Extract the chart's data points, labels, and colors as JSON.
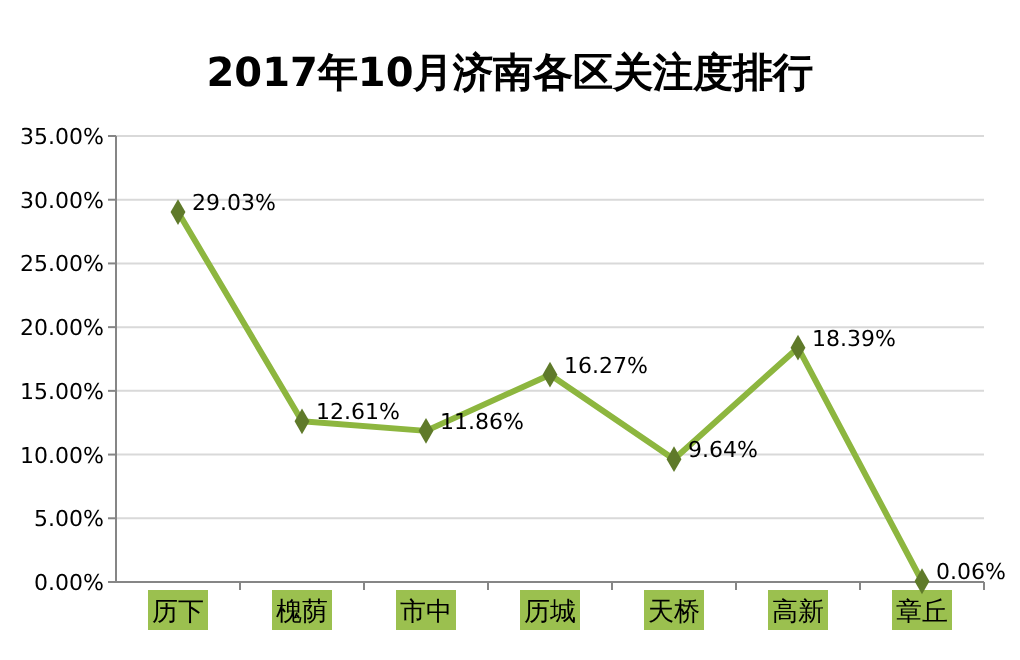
{
  "chart_data": {
    "type": "line",
    "title": "2017年10月济南各区关注度排行",
    "categories": [
      "历下",
      "槐荫",
      "市中",
      "历城",
      "天桥",
      "高新",
      "章丘"
    ],
    "series": [
      {
        "color": "#8db63f",
        "values": [
          29.03,
          12.61,
          11.86,
          16.27,
          9.64,
          18.39,
          0.06
        ],
        "value_labels": [
          "29.03%",
          "12.61%",
          "11.86%",
          "16.27%",
          "9.64%",
          "18.39%",
          "0.06%"
        ]
      }
    ],
    "ylim": [
      0,
      35
    ],
    "yticks": [
      {
        "value": 0,
        "label": "0.00%"
      },
      {
        "value": 5,
        "label": "5.00%"
      },
      {
        "value": 10,
        "label": "10.00%"
      },
      {
        "value": 15,
        "label": "15.00%"
      },
      {
        "value": 20,
        "label": "20.00%"
      },
      {
        "value": 25,
        "label": "25.00%"
      },
      {
        "value": 30,
        "label": "30.00%"
      },
      {
        "value": 35,
        "label": "35.00%"
      }
    ],
    "grid": "y",
    "marker": "diamond",
    "line_style": "solid"
  }
}
